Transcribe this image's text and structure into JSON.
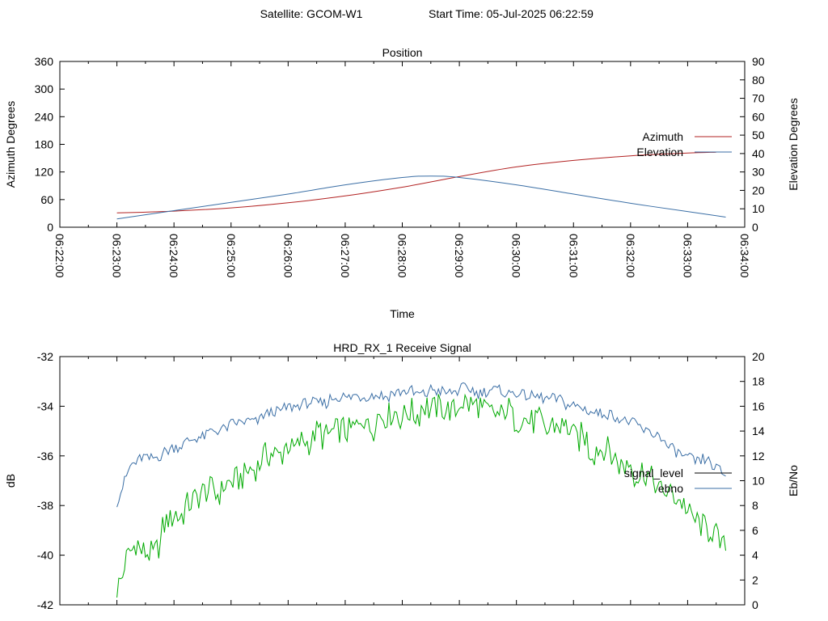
{
  "header": {
    "satellite": "Satellite: GCOM-W1",
    "start_time": "Start Time: 05-Jul-2025 06:22:59"
  },
  "colors": {
    "azimuth": "#b22222",
    "elevation": "#3a6ea5",
    "signal_level": "#00aa00",
    "ebno": "#3a6ea5",
    "legend_signal_level": "#000000",
    "axis": "#000000"
  },
  "chart_data": [
    {
      "type": "line",
      "title": "Position",
      "xlabel": "Time",
      "ylabel": "Azimuth Degrees",
      "y2label": "Elevation Degrees",
      "x_ticks": [
        "06:22:00",
        "06:23:00",
        "06:24:00",
        "06:25:00",
        "06:26:00",
        "06:27:00",
        "06:28:00",
        "06:29:00",
        "06:30:00",
        "06:31:00",
        "06:32:00",
        "06:33:00",
        "06:34:00"
      ],
      "xlim": [
        "06:22:00",
        "06:34:00"
      ],
      "ylim": [
        0,
        360
      ],
      "y_ticks": [
        0,
        60,
        120,
        180,
        240,
        300,
        360
      ],
      "y2lim": [
        0,
        90
      ],
      "y2_ticks": [
        0,
        10,
        20,
        30,
        40,
        50,
        60,
        70,
        80,
        90
      ],
      "grid": false,
      "legend_position": "right",
      "series": [
        {
          "name": "Azimuth",
          "axis": "y",
          "color_key": "azimuth",
          "x": [
            "06:23:00",
            "06:24:00",
            "06:25:00",
            "06:26:00",
            "06:27:00",
            "06:28:00",
            "06:29:00",
            "06:30:00",
            "06:31:00",
            "06:32:00",
            "06:33:00",
            "06:33:30"
          ],
          "values": [
            31,
            35,
            42,
            53,
            68,
            87,
            110,
            131,
            145,
            155,
            161,
            163
          ]
        },
        {
          "name": "Elevation",
          "axis": "y2",
          "color_key": "elevation",
          "x": [
            "06:23:00",
            "06:24:00",
            "06:25:00",
            "06:26:00",
            "06:27:00",
            "06:28:00",
            "06:28:30",
            "06:29:00",
            "06:30:00",
            "06:31:00",
            "06:32:00",
            "06:33:00",
            "06:33:40"
          ],
          "values": [
            4.5,
            9,
            13.5,
            18,
            23,
            27,
            27.8,
            27,
            23,
            18,
            13,
            8.5,
            5.5
          ]
        }
      ]
    },
    {
      "type": "line",
      "title": "HRD_RX_1 Receive Signal",
      "xlabel": "",
      "ylabel": "dB",
      "y2label": "Eb/No",
      "xlim": [
        "06:22:00",
        "06:34:00"
      ],
      "ylim": [
        -42,
        -32
      ],
      "y_ticks": [
        -42,
        -40,
        -38,
        -36,
        -34,
        -32
      ],
      "y2lim": [
        0,
        20
      ],
      "y2_ticks": [
        0,
        2,
        4,
        6,
        8,
        10,
        12,
        14,
        16,
        18,
        20
      ],
      "grid": false,
      "legend_position": "right",
      "series": [
        {
          "name": "signal_level",
          "axis": "y",
          "color_key": "signal_level",
          "legend_color_key": "legend_signal_level",
          "x": [
            "06:23:00",
            "06:23:20",
            "06:23:40",
            "06:24:00",
            "06:24:30",
            "06:25:00",
            "06:25:30",
            "06:26:00",
            "06:26:30",
            "06:27:00",
            "06:27:30",
            "06:28:00",
            "06:28:30",
            "06:29:00",
            "06:29:30",
            "06:30:00",
            "06:30:30",
            "06:31:00",
            "06:31:30",
            "06:32:00",
            "06:32:30",
            "06:33:00",
            "06:33:20",
            "06:33:40"
          ],
          "values": [
            -41.2,
            -39.5,
            -39.8,
            -38.3,
            -37.6,
            -37.0,
            -36.3,
            -35.8,
            -35.3,
            -34.9,
            -34.6,
            -34.3,
            -34.1,
            -34.0,
            -34.1,
            -34.3,
            -34.7,
            -35.2,
            -35.8,
            -36.5,
            -37.2,
            -38.2,
            -38.8,
            -39.6
          ]
        },
        {
          "name": "ebno",
          "axis": "y2",
          "color_key": "ebno",
          "x": [
            "06:23:00",
            "06:23:15",
            "06:23:40",
            "06:24:00",
            "06:24:30",
            "06:25:00",
            "06:25:30",
            "06:26:00",
            "06:26:30",
            "06:27:00",
            "06:27:30",
            "06:28:00",
            "06:28:30",
            "06:29:00",
            "06:29:30",
            "06:30:00",
            "06:30:30",
            "06:31:00",
            "06:31:30",
            "06:32:00",
            "06:32:30",
            "06:33:00",
            "06:33:20",
            "06:33:40"
          ],
          "values": [
            8.5,
            11.5,
            12.0,
            12.5,
            13.5,
            14.5,
            15.0,
            15.8,
            16.3,
            16.6,
            16.8,
            17.0,
            17.2,
            17.3,
            17.2,
            17.0,
            16.7,
            16.2,
            15.5,
            14.5,
            13.5,
            11.8,
            11.5,
            10.2
          ]
        }
      ]
    }
  ]
}
